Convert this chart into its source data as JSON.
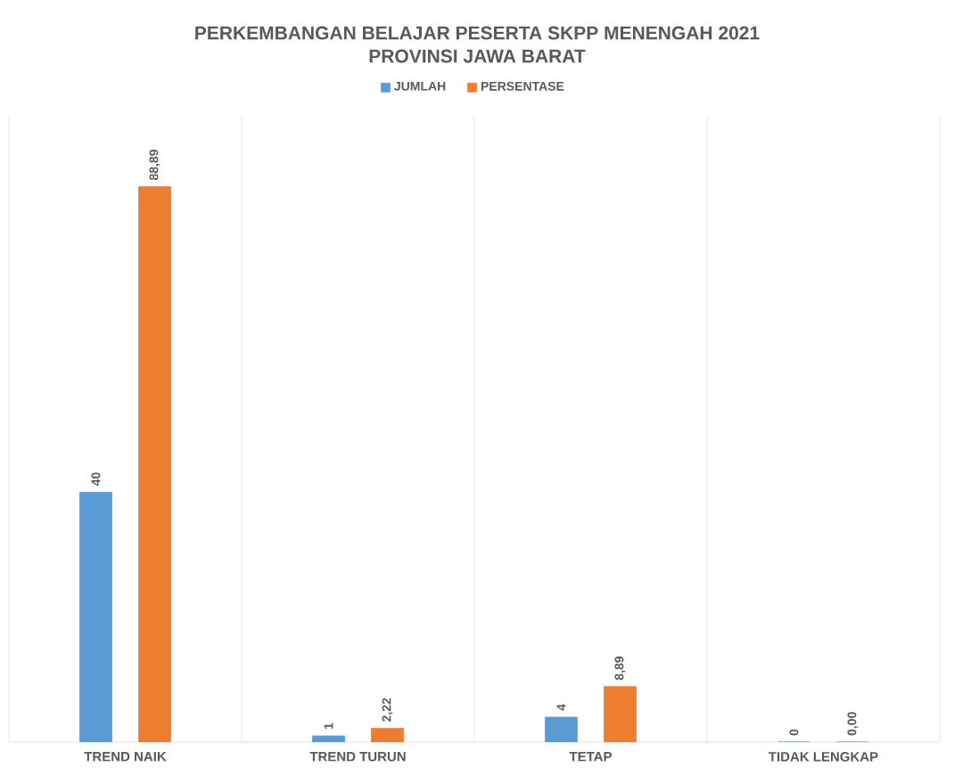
{
  "chart_data": {
    "type": "bar",
    "title": "PERKEMBANGAN BELAJAR PESERTA SKPP MENENGAH 2021",
    "subtitle": "PROVINSI JAWA BARAT",
    "categories": [
      "TREND NAIK",
      "TREND TURUN",
      "TETAP",
      "TIDAK LENGKAP"
    ],
    "series": [
      {
        "name": "JUMLAH",
        "color": "#5b9bd5",
        "values": [
          40,
          1,
          4,
          0
        ],
        "value_labels": [
          "40",
          "1",
          "4",
          "0"
        ]
      },
      {
        "name": "PERSENTASE",
        "color": "#ed7d31",
        "values": [
          88.89,
          2.22,
          8.89,
          0.0
        ],
        "value_labels": [
          "88,89",
          "2,22",
          "8,89",
          "0,00"
        ]
      }
    ],
    "grid": "x",
    "legend": "top"
  }
}
